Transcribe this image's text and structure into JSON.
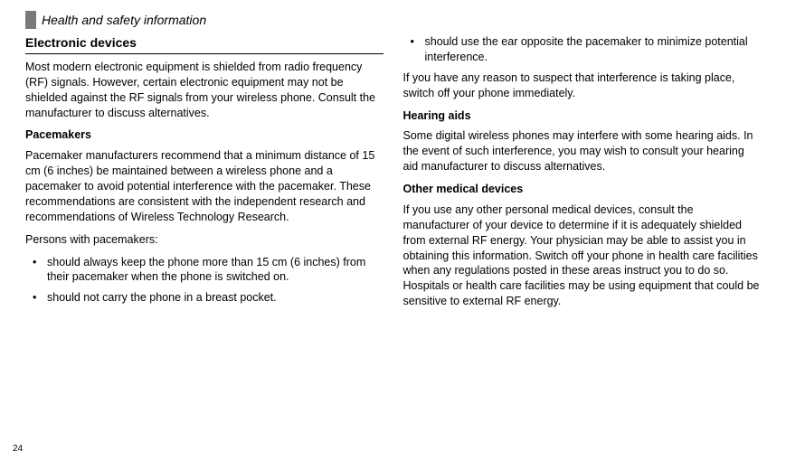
{
  "header": {
    "title": "Health and safety information"
  },
  "page_number": "24",
  "left": {
    "section_title": "Electronic devices",
    "intro": "Most modern electronic equipment is shielded from radio frequency (RF) signals. However, certain electronic equipment may not be shielded against the RF signals from your wireless phone. Consult the manufacturer to discuss alternatives.",
    "pacemakers_head": "Pacemakers",
    "pacemakers_para": "Pacemaker manufacturers recommend that a minimum distance of 15 cm (6 inches) be maintained between a wireless phone and a pacemaker to avoid potential interference with the pacemaker. These recommendations are consistent with the independent research and recommendations of Wireless Technology Research.",
    "persons_intro": "Persons with pacemakers:",
    "bullets": [
      "should always keep the phone more than 15 cm (6 inches) from their pacemaker when the phone is switched on.",
      "should not carry the phone in a breast pocket."
    ]
  },
  "right": {
    "bullets": [
      "should use the ear opposite the pacemaker to minimize potential interference."
    ],
    "suspect_para": "If you have any reason to suspect that interference is taking place, switch off your phone immediately.",
    "hearing_head": "Hearing aids",
    "hearing_para": "Some digital wireless phones may interfere with some hearing aids. In the event of such interference, you may wish to consult your hearing aid manufacturer to discuss alternatives.",
    "other_head": "Other medical devices",
    "other_para": "If you use any other personal medical devices, consult the manufacturer of your device to determine if it is adequately shielded from external RF energy. Your physician may be able to assist you in obtaining this information. Switch off your phone in health care facilities when any regulations posted in these areas instruct you to do so. Hospitals or health care facilities may be using equipment that could be sensitive to external RF energy."
  },
  "colors": {
    "text": "#000000",
    "background": "#ffffff",
    "header_bar": "#7a7a7a"
  },
  "typography": {
    "body_fontsize_pt": 10,
    "header_fontsize_pt": 11,
    "font_family": "Verdana"
  }
}
